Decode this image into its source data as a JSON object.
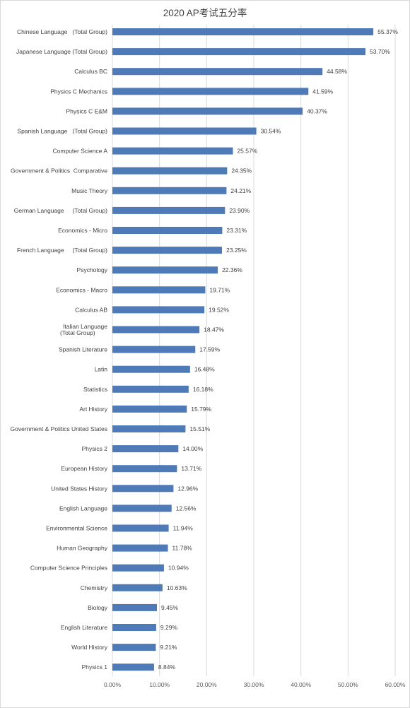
{
  "chart_data": {
    "type": "bar",
    "orientation": "horizontal",
    "title": "2020 AP考试五分率",
    "xlabel": "",
    "ylabel": "",
    "xlim": [
      0,
      0.6
    ],
    "x_ticks": [
      "0.00%",
      "10.00%",
      "20.00%",
      "30.00%",
      "40.00%",
      "50.00%",
      "60.00%"
    ],
    "grid": "vertical",
    "legend": "none",
    "bar_color": "#4f7ab8",
    "categories": [
      "Chinese Language   (Total Group)",
      "Japanese Language (Total Group)",
      "Calculus BC",
      "Physics C Mechanics",
      "Physics C E&M",
      "Spanish Language   (Total Group)",
      "Computer Science A",
      "Government & Politics  Comparative",
      "Music Theory",
      "German Language     (Total Group)",
      "Economics - Micro",
      "French Language     (Total Group)",
      "Psychology",
      "Economics - Macro",
      "Calculus AB",
      "Italian Language\n(Total Group)",
      "Spanish Literature",
      "Latin",
      "Statistics",
      "Art History",
      "Government & Politics United States",
      "Physics 2",
      "European History",
      "United States History",
      "English Language",
      "Environmental Science",
      "Human Geography",
      "Computer Science Principles",
      "Chemistry",
      "Biology",
      "English Literature",
      "World History",
      "Physics 1"
    ],
    "values": [
      0.5537,
      0.537,
      0.4458,
      0.4159,
      0.4037,
      0.3054,
      0.2557,
      0.2435,
      0.2421,
      0.239,
      0.2331,
      0.2325,
      0.2236,
      0.1971,
      0.1952,
      0.1847,
      0.1759,
      0.1648,
      0.1618,
      0.1579,
      0.1551,
      0.14,
      0.1371,
      0.1296,
      0.1256,
      0.1194,
      0.1178,
      0.1094,
      0.1063,
      0.0945,
      0.0929,
      0.0921,
      0.0884
    ],
    "data_labels": [
      "55.37%",
      "53.70%",
      "44.58%",
      "41.59%",
      "40.37%",
      "30.54%",
      "25.57%",
      "24.35%",
      "24.21%",
      "23.90%",
      "23.31%",
      "23.25%",
      "22.36%",
      "19.71%",
      "19.52%",
      "18.47%",
      "17.59%",
      "16.48%",
      "16.18%",
      "15.79%",
      "15.51%",
      "14.00%",
      "13.71%",
      "12.96%",
      "12.56%",
      "11.94%",
      "11.78%",
      "10.94%",
      "10.63%",
      "9.45%",
      "9.29%",
      "9.21%",
      "8.84%"
    ]
  }
}
